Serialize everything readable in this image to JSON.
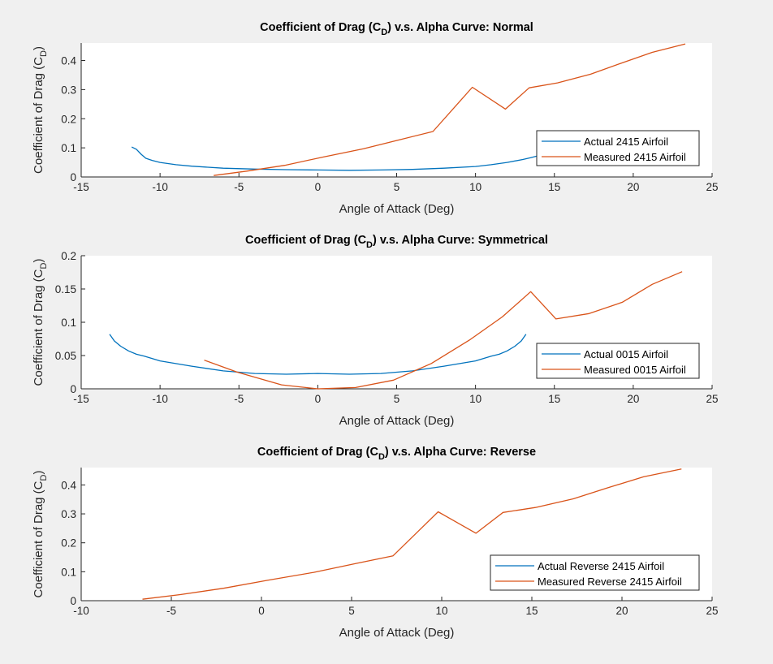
{
  "figure": {
    "background_color": "#f0f0f0",
    "axes_color": "#ffffff"
  },
  "series_colors": {
    "actual": "#0072bd",
    "measured": "#d95319"
  },
  "chart_data": [
    {
      "type": "line",
      "title_prefix": "Coefficient of Drag (C",
      "title_sub": "D",
      "title_suffix": ") v.s. Alpha Curve: Normal",
      "xlabel": "Angle of Attack (Deg)",
      "ylabel_prefix": "Coefficient of Drag (C",
      "ylabel_sub": "D",
      "ylabel_suffix": ")",
      "xlim": [
        -15,
        25
      ],
      "ylim": [
        0,
        0.46
      ],
      "xticks": [
        -15,
        -10,
        -5,
        0,
        5,
        10,
        15,
        20,
        25
      ],
      "xtick_labels": [
        "-15",
        "-10",
        "-5",
        "0",
        "5",
        "10",
        "15",
        "20",
        "25"
      ],
      "yticks": [
        0,
        0.1,
        0.2,
        0.3,
        0.4
      ],
      "ytick_labels": [
        "0",
        "0.1",
        "0.2",
        "0.3",
        "0.4"
      ],
      "legend_position": "right",
      "series": [
        {
          "name": "Actual 2415 Airfoil",
          "color": "#0072bd",
          "x": [
            -11.8,
            -11.5,
            -11.2,
            -10.9,
            -10.5,
            -10,
            -9,
            -8,
            -6,
            -4,
            -2,
            0,
            2,
            4,
            6,
            8,
            10,
            11,
            12,
            13,
            13.5,
            14
          ],
          "y": [
            0.103,
            0.095,
            0.078,
            0.064,
            0.057,
            0.05,
            0.042,
            0.037,
            0.03,
            0.027,
            0.025,
            0.024,
            0.023,
            0.024,
            0.026,
            0.03,
            0.036,
            0.042,
            0.05,
            0.06,
            0.066,
            0.073
          ]
        },
        {
          "name": "Measured 2415 Airfoil",
          "color": "#d95319",
          "x": [
            -6.6,
            -4.5,
            -2.1,
            0.3,
            2.9,
            5.2,
            7.3,
            9.8,
            11.9,
            13.4,
            15.2,
            17.3,
            19.2,
            21.2,
            23.3
          ],
          "y": [
            0.005,
            0.02,
            0.04,
            0.068,
            0.097,
            0.128,
            0.156,
            0.308,
            0.233,
            0.306,
            0.323,
            0.353,
            0.39,
            0.428,
            0.457
          ]
        }
      ]
    },
    {
      "type": "line",
      "title_prefix": "Coefficient of Drag (C",
      "title_sub": "D",
      "title_suffix": ") v.s. Alpha Curve: Symmetrical",
      "xlabel": "Angle of Attack (Deg)",
      "ylabel_prefix": "Coefficient of Drag (C",
      "ylabel_sub": "D",
      "ylabel_suffix": ")",
      "xlim": [
        -15,
        25
      ],
      "ylim": [
        0,
        0.2
      ],
      "xticks": [
        -15,
        -10,
        -5,
        0,
        5,
        10,
        15,
        20,
        25
      ],
      "xtick_labels": [
        "-15",
        "-10",
        "-5",
        "0",
        "5",
        "10",
        "15",
        "20",
        "25"
      ],
      "yticks": [
        0,
        0.05,
        0.1,
        0.15,
        0.2
      ],
      "ytick_labels": [
        "0",
        "0.05",
        "0.1",
        "0.15",
        "0.2"
      ],
      "legend_position": "right",
      "series": [
        {
          "name": "Actual 0015 Airfoil",
          "color": "#0072bd",
          "x": [
            -13.2,
            -12.9,
            -12.5,
            -12,
            -11.5,
            -11,
            -10,
            -8,
            -6,
            -4,
            -2,
            0,
            2,
            4,
            6,
            8,
            10,
            11,
            11.5,
            12,
            12.5,
            12.9,
            13.2
          ],
          "y": [
            0.082,
            0.072,
            0.064,
            0.057,
            0.052,
            0.049,
            0.042,
            0.034,
            0.027,
            0.023,
            0.022,
            0.023,
            0.022,
            0.023,
            0.027,
            0.034,
            0.042,
            0.049,
            0.052,
            0.057,
            0.064,
            0.072,
            0.082
          ]
        },
        {
          "name": "Measured 0015 Airfoil",
          "color": "#d95319",
          "x": [
            -7.2,
            -5.1,
            -2.3,
            0,
            2.4,
            4.8,
            7.2,
            9.6,
            11.7,
            13.5,
            15.1,
            17.2,
            19.3,
            21.2,
            23.1
          ],
          "y": [
            0.043,
            0.025,
            0.006,
            0,
            0.002,
            0.013,
            0.038,
            0.073,
            0.108,
            0.146,
            0.105,
            0.113,
            0.13,
            0.157,
            0.176
          ]
        }
      ]
    },
    {
      "type": "line",
      "title_prefix": "Coefficient of Drag (C",
      "title_sub": "D",
      "title_suffix": ") v.s. Alpha Curve: Reverse",
      "xlabel": "Angle of Attack (Deg)",
      "ylabel_prefix": "Coefficient of Drag (C",
      "ylabel_sub": "D",
      "ylabel_suffix": ")",
      "xlim": [
        -10,
        25
      ],
      "ylim": [
        0,
        0.46
      ],
      "xticks": [
        -10,
        -5,
        0,
        5,
        10,
        15,
        20,
        25
      ],
      "xtick_labels": [
        "-10",
        "-5",
        "0",
        "5",
        "10",
        "15",
        "20",
        "25"
      ],
      "yticks": [
        0,
        0.1,
        0.2,
        0.3,
        0.4
      ],
      "ytick_labels": [
        "0",
        "0.1",
        "0.2",
        "0.3",
        "0.4"
      ],
      "legend_position": "right",
      "series": [
        {
          "name": "Actual Reverse 2415 Airfoil",
          "color": "#0072bd",
          "x": [],
          "y": []
        },
        {
          "name": "Measured Reverse 2415 Airfoil",
          "color": "#d95319",
          "x": [
            -6.6,
            -4.5,
            -2.1,
            0.3,
            2.9,
            5.2,
            7.3,
            9.8,
            11.9,
            13.4,
            15.2,
            17.3,
            19.2,
            21.2,
            23.3
          ],
          "y": [
            0.005,
            0.021,
            0.043,
            0.07,
            0.098,
            0.128,
            0.155,
            0.307,
            0.233,
            0.305,
            0.322,
            0.352,
            0.39,
            0.428,
            0.455
          ]
        }
      ]
    }
  ]
}
